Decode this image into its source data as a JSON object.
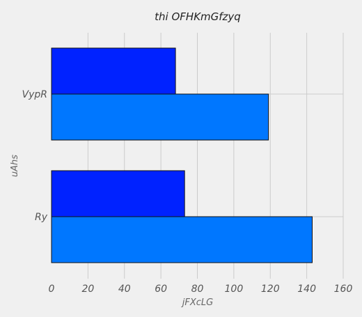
{
  "chart_data": {
    "type": "bar",
    "orientation": "horizontal",
    "title": "thi OFHKmGfzyq",
    "xlabel": "jFXcLG",
    "ylabel": "uAhs",
    "categories": [
      "Ry",
      "VypR"
    ],
    "series": [
      {
        "values": [
          143,
          119
        ],
        "color": "#0077ff"
      },
      {
        "values": [
          73,
          68
        ],
        "color": "#0022ff"
      }
    ],
    "xlim": [
      0,
      160
    ],
    "xticks": [
      0,
      20,
      40,
      60,
      80,
      100,
      120,
      140,
      160
    ],
    "grid": true,
    "legend": false
  }
}
